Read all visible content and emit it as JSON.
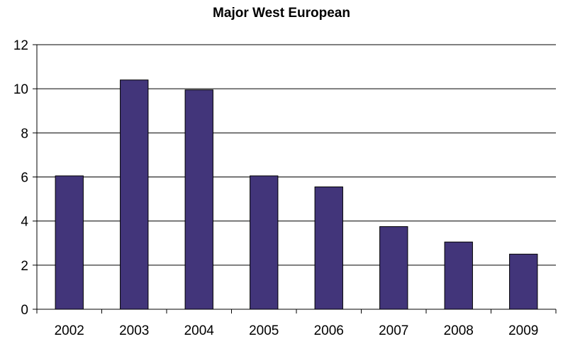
{
  "chart_data": {
    "type": "bar",
    "title": "Major West European",
    "xlabel": "",
    "ylabel": "",
    "categories": [
      "2002",
      "2003",
      "2004",
      "2005",
      "2006",
      "2007",
      "2008",
      "2009"
    ],
    "values": [
      6.05,
      10.4,
      9.95,
      6.05,
      5.55,
      3.75,
      3.05,
      2.5
    ],
    "ylim": [
      0,
      12
    ],
    "yticks": [
      "0",
      "2",
      "4",
      "6",
      "8",
      "10",
      "12"
    ],
    "grid": true,
    "legend": "none",
    "bar_color": "#42357a"
  }
}
